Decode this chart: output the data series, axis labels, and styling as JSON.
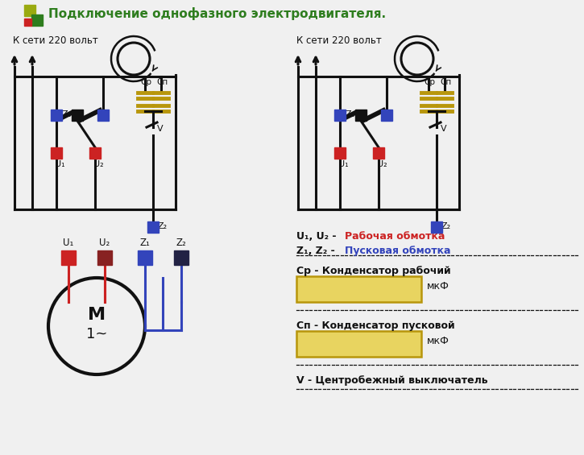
{
  "title": "Подключение однофазного электродвигателя.",
  "title_color": "#2e7d1e",
  "title_fontsize": 11,
  "bg_color": "#f0f0f0",
  "label_k_seti_1": "К сети 220 вольт",
  "label_k_seti_2": "К сети 220 вольт",
  "legend_u_black": "U₁, U₂ - ",
  "legend_u_colored": "Рабочая обмотка",
  "legend_z_black": "Z₁, Z₂ - ",
  "legend_z_colored": "Пусковая обмотка",
  "legend_cp": "Cр - Конденсатор рабочий",
  "legend_cn": "Cп - Конденсатор пусковой",
  "legend_v": "V - Центробежный выключатель",
  "mkf": "мкФ",
  "color_red": "#cc2222",
  "color_blue": "#3344bb",
  "color_black": "#111111",
  "color_olive": "#b8960c",
  "color_green": "#2e7d1e",
  "color_logo_olive": "#9aaa10",
  "color_logo_red": "#cc2222"
}
